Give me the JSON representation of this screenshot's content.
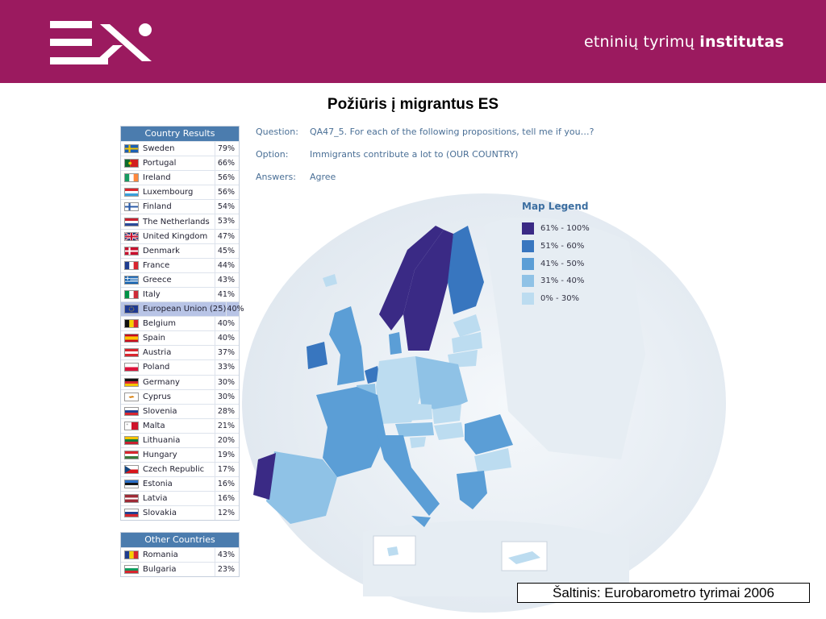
{
  "header": {
    "brand_regular": "etninių tyrimų",
    "brand_bold": "institutas"
  },
  "title": "Požiūris į migrantus ES",
  "question": {
    "question_label": "Question:",
    "question_text": "QA47_5. For each of the following propositions, tell me if you…?",
    "option_label": "Option:",
    "option_text": "Immigrants contribute a lot to (OUR COUNTRY)",
    "answers_label": "Answers:",
    "answers_text": "Agree"
  },
  "country_table": {
    "header": "Country Results",
    "rows": [
      {
        "name": "Sweden",
        "value": "79%"
      },
      {
        "name": "Portugal",
        "value": "66%"
      },
      {
        "name": "Ireland",
        "value": "56%"
      },
      {
        "name": "Luxembourg",
        "value": "56%"
      },
      {
        "name": "Finland",
        "value": "54%"
      },
      {
        "name": "The Netherlands",
        "value": "53%"
      },
      {
        "name": "United Kingdom",
        "value": "47%"
      },
      {
        "name": "Denmark",
        "value": "45%"
      },
      {
        "name": "France",
        "value": "44%"
      },
      {
        "name": "Greece",
        "value": "43%"
      },
      {
        "name": "Italy",
        "value": "41%"
      },
      {
        "name": "European Union (25)",
        "value": "40%"
      },
      {
        "name": "Belgium",
        "value": "40%"
      },
      {
        "name": "Spain",
        "value": "40%"
      },
      {
        "name": "Austria",
        "value": "37%"
      },
      {
        "name": "Poland",
        "value": "33%"
      },
      {
        "name": "Germany",
        "value": "30%"
      },
      {
        "name": "Cyprus",
        "value": "30%"
      },
      {
        "name": "Slovenia",
        "value": "28%"
      },
      {
        "name": "Malta",
        "value": "21%"
      },
      {
        "name": "Lithuania",
        "value": "20%"
      },
      {
        "name": "Hungary",
        "value": "19%"
      },
      {
        "name": "Czech Republic",
        "value": "17%"
      },
      {
        "name": "Estonia",
        "value": "16%"
      },
      {
        "name": "Latvia",
        "value": "16%"
      },
      {
        "name": "Slovakia",
        "value": "12%"
      }
    ]
  },
  "other_table": {
    "header": "Other Countries",
    "rows": [
      {
        "name": "Romania",
        "value": "43%"
      },
      {
        "name": "Bulgaria",
        "value": "23%"
      }
    ]
  },
  "legend": {
    "title": "Map Legend",
    "items": [
      {
        "label": "61% - 100%",
        "color": "#3a2a85"
      },
      {
        "label": "51% - 60%",
        "color": "#3876bf"
      },
      {
        "label": "41% - 50%",
        "color": "#5b9ed6"
      },
      {
        "label": "31% - 40%",
        "color": "#8fc2e6"
      },
      {
        "label": "0% - 30%",
        "color": "#bcdcf0"
      }
    ]
  },
  "source": "Šaltinis: Eurobarometro tyrimai 2006",
  "colors": {
    "header_bg": "#9b1a5f",
    "table_header": "#4b7cae",
    "eu_row": "#b8c4e6"
  }
}
